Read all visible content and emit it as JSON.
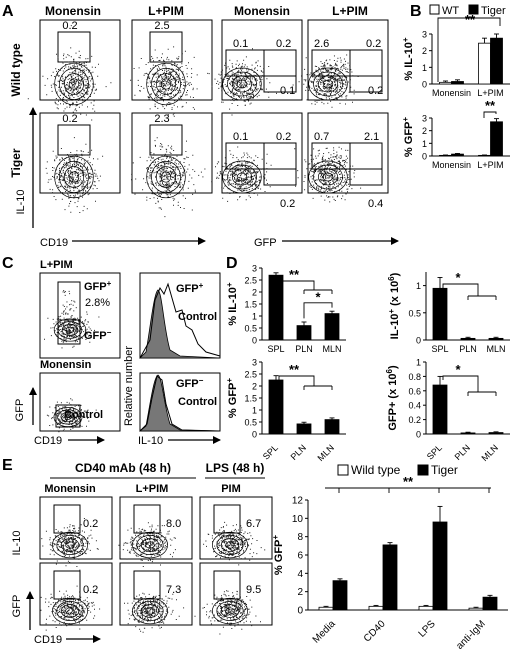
{
  "panels": {
    "A": {
      "letter": "A",
      "col_headers": [
        "Monensin",
        "L+PIM",
        "Monensin",
        "L+PIM"
      ],
      "row_labels": [
        "Wild type",
        "Tiger"
      ],
      "ylabel": "IL-10",
      "xlabel_left": "CD19",
      "xlabel_right": "GFP",
      "values": {
        "wt_mon": "0.2",
        "wt_lpim": "2.5",
        "wt_gfp_mon_tl": "0.1",
        "wt_gfp_mon_tr": "0.2",
        "wt_gfp_mon_br": "0.1",
        "wt_gfp_lpim_tl": "2.6",
        "wt_gfp_lpim_tr": "0.2",
        "wt_gfp_lpim_br": "0.2",
        "tg_mon": "0.2",
        "tg_lpim": "2.3",
        "tg_gfp_mon_tl": "0.1",
        "tg_gfp_mon_tr": "0.2",
        "tg_gfp_mon_br": "0.2",
        "tg_gfp_lpim_tl": "0.7",
        "tg_gfp_lpim_tr": "2.1",
        "tg_gfp_lpim_br": "0.4"
      }
    },
    "C": {
      "letter": "C",
      "top_label": "L+PIM",
      "bottom_label": "Monensin",
      "gfp_plus": "GFP",
      "gfp_plus_pct": "2.8%",
      "gfp_minus": "GFP",
      "control": "Control",
      "ylabel_dot": "GFP",
      "xlabel_dot": "CD19",
      "ylabel_hist": "Relative number",
      "xlabel_hist": "IL-10",
      "plus": "+",
      "minus": "−"
    },
    "E": {
      "letter": "E",
      "group1": "CD40 mAb (48 h)",
      "group2": "LPS (48 h)",
      "col_headers": [
        "Monensin",
        "L+PIM",
        "PIM"
      ],
      "ylabel_top": "IL-10",
      "ylabel_bottom": "GFP",
      "xlabel": "CD19",
      "values": [
        "0.2",
        "8.0",
        "6.7",
        "0.2",
        "7.3",
        "9.5"
      ]
    }
  },
  "chart_data": [
    {
      "id": "B-top",
      "letter": "B",
      "type": "bar",
      "categories": [
        "Monensin",
        "L+PIM"
      ],
      "series": [
        {
          "name": "WT",
          "values": [
            0.1,
            2.45
          ],
          "err": [
            0.08,
            0.3
          ]
        },
        {
          "name": "Tiger",
          "values": [
            0.15,
            2.75
          ],
          "err": [
            0.1,
            0.25
          ]
        }
      ],
      "ylabel": "% IL-10",
      "ylabel_sup": "+",
      "ylim": [
        0,
        3
      ],
      "yticks": [
        0,
        1,
        2,
        3
      ],
      "legend": [
        "WT",
        "Tiger"
      ],
      "sig": "**"
    },
    {
      "id": "B-bottom",
      "type": "bar",
      "categories": [
        "Monensin",
        "L+PIM"
      ],
      "series": [
        {
          "name": "WT",
          "values": [
            0.05,
            0.05
          ],
          "err": [
            0.03,
            0.03
          ]
        },
        {
          "name": "Tiger",
          "values": [
            0.15,
            2.7
          ],
          "err": [
            0.05,
            0.25
          ]
        }
      ],
      "ylabel": "% GFP",
      "ylabel_sup": "+",
      "ylim": [
        0,
        3
      ],
      "yticks": [
        0,
        1,
        2,
        3
      ],
      "sig": "**"
    },
    {
      "id": "D-tl",
      "letter": "D",
      "type": "bar",
      "categories": [
        "SPL",
        "PLN",
        "MLN"
      ],
      "values": [
        2.7,
        0.6,
        1.1
      ],
      "err": [
        0.1,
        0.15,
        0.1
      ],
      "ylabel": "% IL-10",
      "ylabel_sup": "+",
      "ylim": [
        0,
        3
      ],
      "yticks": [
        0,
        0.5,
        1,
        1.5,
        2,
        2.5,
        3
      ],
      "yticklabels": [
        "0",
        "0.5",
        "1",
        "1.5",
        "2",
        "2.5",
        "3"
      ],
      "sig": [
        "**",
        "*"
      ]
    },
    {
      "id": "D-tr",
      "type": "bar",
      "categories": [
        "SPL",
        "PLN",
        "MLN"
      ],
      "values": [
        0.95,
        0.03,
        0.03
      ],
      "err": [
        0.2,
        0.02,
        0.02
      ],
      "ylabel": "IL-10",
      "ylabel_sup": "+",
      "ylabel_unit": " (x 10",
      "ylabel_exp": "6",
      "ylabel_end": ")",
      "ylim": [
        0,
        1.25
      ],
      "yticks": [
        0,
        0.5,
        1
      ],
      "yticklabels": [
        "0",
        "0.5",
        "1"
      ],
      "sig": [
        "*"
      ]
    },
    {
      "id": "D-bl",
      "type": "bar",
      "categories": [
        "SPL",
        "PLN",
        "MLN"
      ],
      "values": [
        2.25,
        0.42,
        0.6
      ],
      "err": [
        0.18,
        0.07,
        0.07
      ],
      "ylabel": "% GFP",
      "ylabel_sup": "+",
      "ylim": [
        0,
        3
      ],
      "yticks": [
        0,
        0.5,
        1,
        1.5,
        2,
        2.5,
        3
      ],
      "yticklabels": [
        "0",
        "0.5",
        "1",
        "1.5",
        "2",
        "2.5",
        "3"
      ],
      "sig": [
        "**"
      ]
    },
    {
      "id": "D-br",
      "type": "bar",
      "categories": [
        "SPL",
        "PLN",
        "MLN"
      ],
      "values": [
        0.68,
        0.015,
        0.02
      ],
      "err": [
        0.12,
        0.01,
        0.01
      ],
      "ylabel": "GFP+ (x 10",
      "ylabel_exp": "6",
      "ylabel_end": ")",
      "ylim": [
        0,
        1.0
      ],
      "yticks": [
        0,
        0.2,
        0.4,
        0.6,
        0.8,
        1
      ],
      "yticklabels": [
        "0",
        "0.2",
        "0.4",
        "0.6",
        "0.8",
        "1"
      ],
      "sig": [
        "*"
      ]
    },
    {
      "id": "E-bar",
      "type": "bar",
      "categories": [
        "Media",
        "CD40",
        "LPS",
        "anti-IgM"
      ],
      "series": [
        {
          "name": "Wild type",
          "values": [
            0.3,
            0.4,
            0.4,
            0.2
          ],
          "err": [
            0.1,
            0.1,
            0.1,
            0.1
          ]
        },
        {
          "name": "Tiger",
          "values": [
            3.2,
            7.1,
            9.6,
            1.4
          ],
          "err": [
            0.2,
            0.25,
            1.7,
            0.2
          ]
        }
      ],
      "ylabel": "% GFP",
      "ylabel_sup": "+",
      "ylim": [
        0,
        12
      ],
      "yticks": [
        0,
        2,
        4,
        6,
        8,
        10,
        12
      ],
      "legend": [
        "Wild type",
        "Tiger"
      ],
      "sig": "**"
    }
  ]
}
